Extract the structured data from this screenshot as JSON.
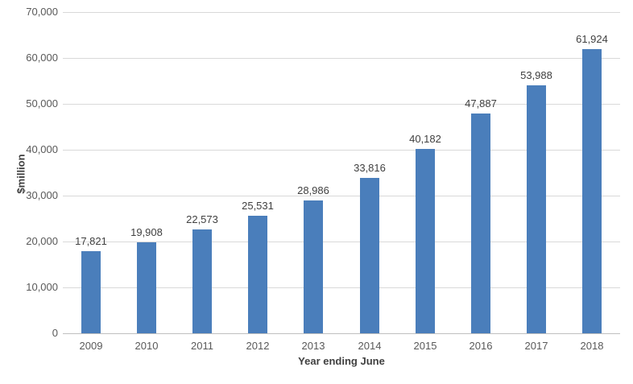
{
  "chart_data": {
    "type": "bar",
    "title": "",
    "xlabel": "Year ending June",
    "ylabel": "$million",
    "categories": [
      "2009",
      "2010",
      "2011",
      "2012",
      "2013",
      "2014",
      "2015",
      "2016",
      "2017",
      "2018"
    ],
    "values": [
      17821,
      19908,
      22573,
      25531,
      28986,
      33816,
      40182,
      47887,
      53988,
      61924
    ],
    "data_labels": [
      "17,821",
      "19,908",
      "22,573",
      "25,531",
      "28,986",
      "33,816",
      "40,182",
      "47,887",
      "53,988",
      "61,924"
    ],
    "ylim": [
      0,
      70000
    ],
    "ytick_interval": 10000,
    "ytick_labels": [
      "0",
      "10,000",
      "20,000",
      "30,000",
      "40,000",
      "50,000",
      "60,000",
      "70,000"
    ],
    "grid": true,
    "legend": "none",
    "bar_color": "#4a7ebb",
    "gridline_color": "#d9d9d9",
    "axis_line_color": "#bfbfbf",
    "tick_label_color": "#595959",
    "data_label_color": "#404040"
  }
}
